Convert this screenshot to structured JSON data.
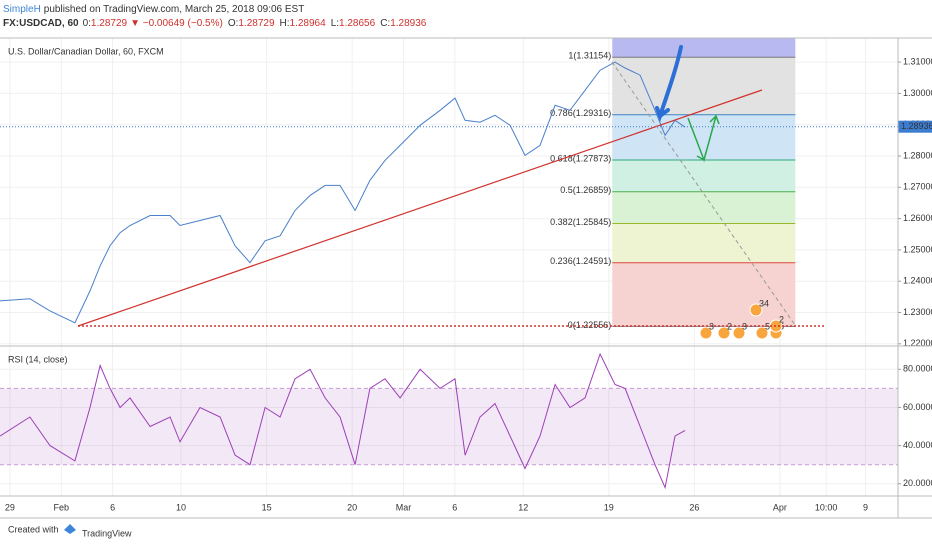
{
  "header": {
    "author": "SimpleH",
    "published": "published on TradingView.com, March 25, 2018 09:06 EST",
    "symbol": "FX:USDCAD, 60",
    "open_prefix": "0:",
    "price": "1.28729",
    "change": "▼ −0.00649 (−0.5%)",
    "ohlc": [
      {
        "key": "O:",
        "value": "1.28729"
      },
      {
        "key": "H:",
        "value": "1.28964"
      },
      {
        "key": "L:",
        "value": "1.28656"
      },
      {
        "key": "C:",
        "value": "1.28936"
      }
    ]
  },
  "chart_data": [
    {
      "type": "line",
      "title": "U.S. Dollar/Canadian Dollar, 60, FXCM",
      "color": "#4a7fcb",
      "xlim": [
        -0.58,
        51.9
      ],
      "ylim": [
        1.2193,
        1.3177
      ],
      "yticks": [
        {
          "value": 1.31,
          "label": "1.31000"
        },
        {
          "value": 1.3,
          "label": "1.30000"
        },
        {
          "value": 1.29,
          "label": "1.29000"
        },
        {
          "value": 1.28,
          "label": "1.28000"
        },
        {
          "value": 1.27,
          "label": "1.27000"
        },
        {
          "value": 1.26,
          "label": "1.26000"
        },
        {
          "value": 1.25,
          "label": "1.25000"
        },
        {
          "value": 1.24,
          "label": "1.24000"
        },
        {
          "value": 1.23,
          "label": "1.23000"
        },
        {
          "value": 1.22,
          "label": "1.22000"
        }
      ],
      "last_price": 1.28936,
      "x": [
        -0.58,
        1.17,
        2.34,
        3.8,
        4.68,
        5.27,
        5.85,
        6.44,
        7.02,
        8.19,
        9.36,
        9.94,
        11.11,
        12.28,
        13.16,
        14.03,
        14.91,
        15.79,
        16.66,
        17.54,
        18.42,
        19.29,
        20.17,
        21.04,
        21.92,
        22.8,
        23.97,
        25.14,
        26.01,
        26.6,
        27.47,
        28.35,
        29.23,
        30.1,
        30.98,
        31.86,
        32.73,
        33.61,
        34.49,
        35.36,
        35.95,
        36.83,
        37.7,
        38.29,
        38.87,
        39.46
      ],
      "values": [
        1.2337,
        1.2344,
        1.2305,
        1.2267,
        1.2369,
        1.2449,
        1.2513,
        1.2555,
        1.2578,
        1.261,
        1.261,
        1.2578,
        1.2594,
        1.261,
        1.2513,
        1.2459,
        1.2529,
        1.2545,
        1.2626,
        1.2674,
        1.2706,
        1.2706,
        1.2626,
        1.2722,
        1.2786,
        1.2834,
        1.2898,
        1.2946,
        1.2985,
        1.2914,
        1.2908,
        1.293,
        1.2898,
        1.2802,
        1.2834,
        1.2962,
        1.2946,
        1.301,
        1.3074,
        1.31,
        1.3081,
        1.3058,
        1.2946,
        1.2866,
        1.2914,
        1.2892
      ],
      "fibonacci": {
        "x": [
          35.2,
          45.9
        ],
        "above_fill": "#b9b9f2",
        "levels": [
          {
            "label": "1(1.31154)",
            "value": 1.31154,
            "color": "#787878",
            "fill": "#e2e2e2"
          },
          {
            "label": "0.786(1.29316)",
            "value": 1.29316,
            "color": "#3c84c4",
            "fill": "#cfe4f5"
          },
          {
            "label": "0.618(1.27873)",
            "value": 1.27873,
            "color": "#2ea87a",
            "fill": "#cff0e2"
          },
          {
            "label": "0.5(1.26859)",
            "value": 1.26859,
            "color": "#4caf50",
            "fill": "#d9f2d3"
          },
          {
            "label": "0.382(1.25845)",
            "value": 1.25845,
            "color": "#9bb82a",
            "fill": "#eef4d2"
          },
          {
            "label": "0.236(1.24591)",
            "value": 1.24591,
            "color": "#e0463f",
            "fill": "#f6d3d0"
          },
          {
            "label": "0(1.22556)",
            "value": 1.22556,
            "color": "#787878"
          }
        ]
      },
      "events": [
        "3",
        "2",
        "3",
        "5",
        "5",
        "2",
        "34"
      ]
    },
    {
      "type": "line",
      "title": "RSI (14, close)",
      "color": "#9c3fb8",
      "xlim": [
        -0.58,
        51.9
      ],
      "ylim": [
        13.6,
        92.2
      ],
      "band": [
        30,
        70
      ],
      "yticks": [
        {
          "value": 80,
          "label": "80.0000"
        },
        {
          "value": 60,
          "label": "60.0000"
        },
        {
          "value": 40,
          "label": "40.0000"
        },
        {
          "value": 20,
          "label": "20.0000"
        }
      ],
      "xticks": [
        {
          "value": 0,
          "label": "29"
        },
        {
          "value": 3,
          "label": "Feb"
        },
        6,
        10,
        15,
        20,
        {
          "value": 23,
          "label": "Mar"
        },
        {
          "value": 26,
          "label": "6"
        },
        {
          "value": 30,
          "label": "12"
        },
        {
          "value": 35,
          "label": "19"
        },
        {
          "value": 40,
          "label": "26"
        },
        {
          "value": 45,
          "label": "Apr"
        },
        {
          "value": 47.7,
          "label": "10:00"
        },
        {
          "value": 50,
          "label": "9"
        }
      ],
      "x": [
        -0.58,
        1.17,
        2.34,
        3.8,
        4.68,
        5.27,
        5.85,
        6.44,
        7.02,
        8.19,
        9.36,
        9.94,
        11.11,
        12.28,
        13.16,
        14.03,
        14.91,
        15.79,
        16.66,
        17.54,
        18.42,
        19.29,
        20.17,
        21.04,
        21.92,
        22.8,
        23.97,
        25.14,
        26.01,
        26.6,
        27.47,
        28.35,
        29.23,
        30.1,
        30.98,
        31.86,
        32.73,
        33.61,
        34.49,
        35.36,
        35.95,
        36.83,
        37.7,
        38.29,
        38.87,
        39.46
      ],
      "values": [
        45,
        55,
        40,
        32,
        60,
        82,
        70,
        60,
        65,
        50,
        55,
        42,
        60,
        55,
        35,
        30,
        60,
        55,
        75,
        80,
        65,
        55,
        30,
        70,
        75,
        65,
        80,
        70,
        75,
        35,
        55,
        62,
        45,
        28,
        45,
        72,
        60,
        65,
        88,
        72,
        70,
        50,
        30,
        18,
        45,
        48
      ]
    }
  ],
  "footer": {
    "created": "Created with",
    "brand": "TradingView"
  }
}
